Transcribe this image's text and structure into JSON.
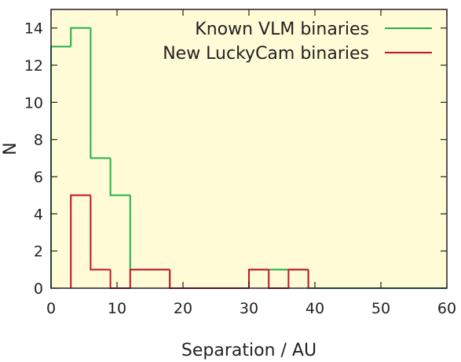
{
  "chart_data": {
    "type": "histogram",
    "title": "",
    "xlabel": "Separation / AU",
    "ylabel": "N",
    "xlim": [
      0,
      60
    ],
    "ylim": [
      0,
      15
    ],
    "xticks": [
      "0",
      "10",
      "20",
      "30",
      "40",
      "50",
      "60"
    ],
    "yticks": [
      "0",
      "2",
      "4",
      "6",
      "8",
      "10",
      "12",
      "14"
    ],
    "grid": false,
    "legend_position": "top-right",
    "background_color": "#fffbd6",
    "series": [
      {
        "name": "Known VLM binaries",
        "color": "#22b14c",
        "bins": [
          {
            "x0": 0,
            "x1": 3,
            "value": 13
          },
          {
            "x0": 3,
            "x1": 6,
            "value": 14
          },
          {
            "x0": 6,
            "x1": 9,
            "value": 7
          },
          {
            "x0": 9,
            "x1": 12,
            "value": 5
          },
          {
            "x0": 12,
            "x1": 15,
            "value": 1
          },
          {
            "x0": 15,
            "x1": 18,
            "value": 1
          },
          {
            "x0": 18,
            "x1": 30,
            "value": 0
          },
          {
            "x0": 30,
            "x1": 33,
            "value": 1
          },
          {
            "x0": 33,
            "x1": 36,
            "value": 1
          },
          {
            "x0": 36,
            "x1": 39,
            "value": 1
          },
          {
            "x0": 39,
            "x1": 60,
            "value": 0
          }
        ]
      },
      {
        "name": "New LuckyCam binaries",
        "color": "#c8102e",
        "bins": [
          {
            "x0": 3,
            "x1": 6,
            "value": 5
          },
          {
            "x0": 6,
            "x1": 9,
            "value": 1
          },
          {
            "x0": 9,
            "x1": 12,
            "value": 0
          },
          {
            "x0": 12,
            "x1": 15,
            "value": 1
          },
          {
            "x0": 15,
            "x1": 18,
            "value": 1
          },
          {
            "x0": 18,
            "x1": 30,
            "value": 0
          },
          {
            "x0": 30,
            "x1": 33,
            "value": 1
          },
          {
            "x0": 33,
            "x1": 36,
            "value": 0
          },
          {
            "x0": 36,
            "x1": 39,
            "value": 1
          }
        ]
      }
    ]
  }
}
